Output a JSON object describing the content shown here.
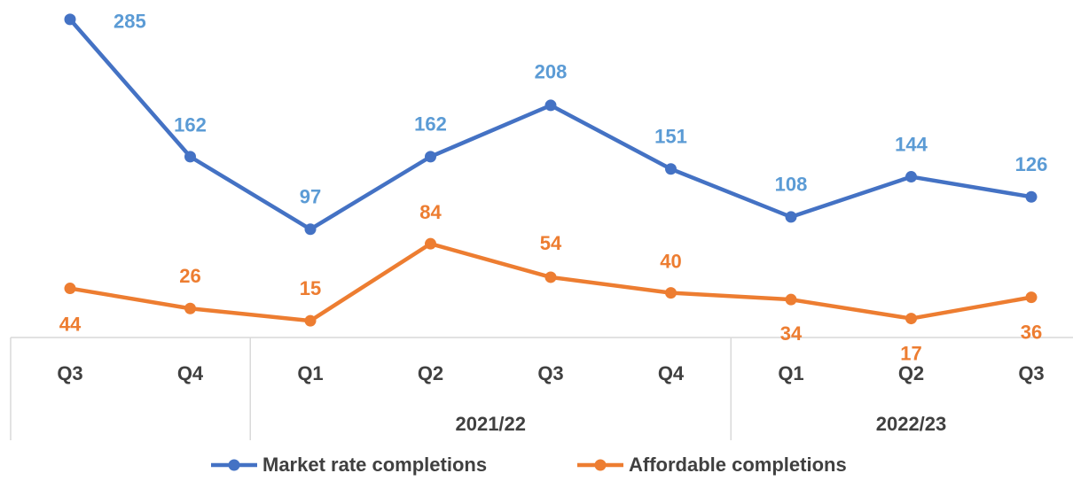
{
  "chart_data": {
    "type": "line",
    "categories": [
      "Q3",
      "Q4",
      "Q1",
      "Q2",
      "Q3",
      "Q4",
      "Q1",
      "Q2",
      "Q3"
    ],
    "category_groups": [
      {
        "label": null,
        "span": 2
      },
      {
        "label": "2021/22",
        "span": 4
      },
      {
        "label": "2022/23",
        "span": 3
      }
    ],
    "series": [
      {
        "name": "Market rate completions",
        "color": "#4472c4",
        "label_color": "#5b9bd5",
        "values": [
          285,
          162,
          97,
          162,
          208,
          151,
          108,
          144,
          126
        ]
      },
      {
        "name": "Affordable completions",
        "color": "#ed7d31",
        "label_color": "#ed7d31",
        "values": [
          44,
          26,
          15,
          84,
          54,
          40,
          34,
          17,
          36
        ]
      }
    ],
    "ylim": [
      0,
      300
    ],
    "legend": "bottom"
  }
}
